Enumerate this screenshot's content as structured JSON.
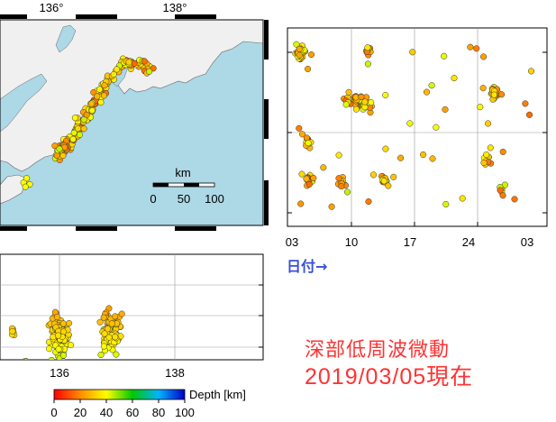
{
  "chart_data": [
    {
      "type": "scatter",
      "map": true,
      "x_ticks": [
        "136°",
        "138°"
      ],
      "scale_bar": {
        "unit": "km",
        "ticks": [
          "0",
          "50",
          "100"
        ]
      },
      "land_color": "#f0f0f0",
      "sea_color": "#add8e6",
      "clusters": [
        {
          "lon": 137.4,
          "lat": 35.2,
          "n": 55
        },
        {
          "lon": 136.7,
          "lat": 34.8,
          "n": 60
        },
        {
          "lon": 136.2,
          "lat": 34.3,
          "n": 55
        },
        {
          "lon": 135.6,
          "lat": 33.9,
          "n": 4
        }
      ]
    },
    {
      "type": "scatter",
      "x_ticks": [
        "03",
        "10",
        "17",
        "24",
        "03"
      ],
      "x_label": "日付→",
      "clusters": [
        {
          "day": 4,
          "lat": 35.3,
          "n": 30
        },
        {
          "day": 12,
          "lat": 35.3,
          "n": 12
        },
        {
          "day": 11,
          "lat": 34.8,
          "n": 55
        },
        {
          "day": 27,
          "lat": 34.9,
          "n": 22
        },
        {
          "day": 5,
          "lat": 34.4,
          "n": 14
        },
        {
          "day": 26,
          "lat": 34.2,
          "n": 12
        },
        {
          "day": 5,
          "lat": 34.0,
          "n": 16
        },
        {
          "day": 9,
          "lat": 34.0,
          "n": 8
        },
        {
          "day": 14,
          "lat": 34.0,
          "n": 14
        },
        {
          "day": 28,
          "lat": 33.9,
          "n": 6
        }
      ]
    },
    {
      "type": "scatter",
      "x_ticks": [
        "136",
        "138"
      ],
      "clusters": [
        {
          "lon": 135.2,
          "depth": 33,
          "n": 6
        },
        {
          "lon": 136.0,
          "depth": 35,
          "n": 110
        },
        {
          "lon": 136.9,
          "depth": 33,
          "n": 110
        },
        {
          "lon": 135.4,
          "depth": 45,
          "n": 3
        }
      ]
    }
  ],
  "colorbar": {
    "label": "Depth [km]",
    "ticks": [
      "0",
      "20",
      "40",
      "60",
      "80",
      "100"
    ],
    "range": [
      0,
      100
    ]
  },
  "caption": {
    "title": "深部低周波微動",
    "date": "2019/03/05現在"
  }
}
